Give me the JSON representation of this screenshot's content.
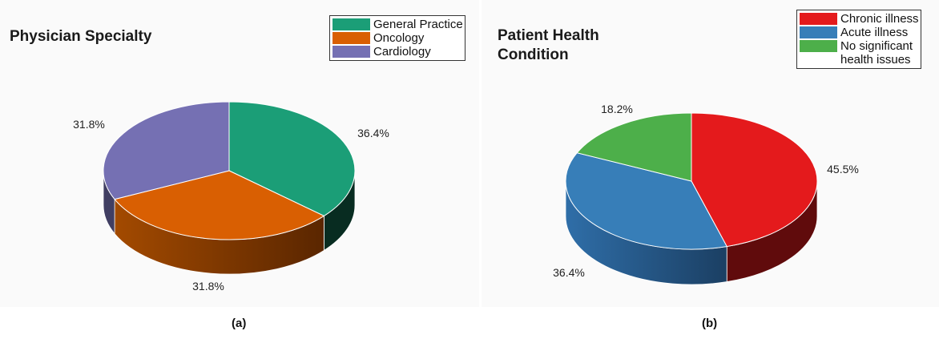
{
  "chart_data": [
    {
      "type": "pie",
      "title": "Physician Specialty",
      "caption": "(a)",
      "categories": [
        "General Practice",
        "Oncology",
        "Cardiology"
      ],
      "values": [
        36.4,
        31.8,
        31.8
      ],
      "labels": [
        "36.4%",
        "31.8%",
        "31.8%"
      ],
      "colors": [
        "#1b9e77",
        "#d95f02",
        "#7570b3"
      ],
      "legend_position": "top-right",
      "style": "3d"
    },
    {
      "type": "pie",
      "title": "Patient Health Condition",
      "caption": "(b)",
      "categories": [
        "Chronic illness",
        "Acute illness",
        "No significant health issues"
      ],
      "legend_labels": [
        "Chronic illness",
        "Acute illness",
        "No significant\nhealth issues"
      ],
      "values": [
        45.5,
        36.4,
        18.2
      ],
      "labels": [
        "45.5%",
        "36.4%",
        "18.2%"
      ],
      "colors": [
        "#e41a1c",
        "#377eb8",
        "#4daf4a"
      ],
      "legend_position": "top-right",
      "style": "3d"
    }
  ]
}
